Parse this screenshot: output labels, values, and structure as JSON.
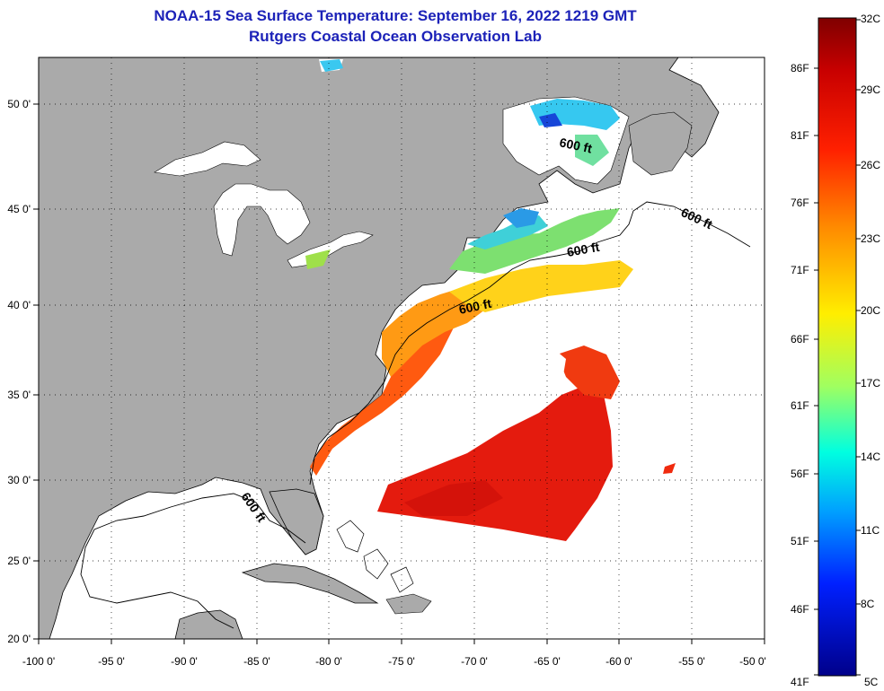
{
  "title": {
    "line1": "NOAA-15 Sea Surface Temperature:  September 16, 2022 1219 GMT",
    "line2": "Rutgers Coastal Ocean Observation Lab"
  },
  "map": {
    "lon_ticks": [
      "-100 0'",
      "-95 0'",
      "-90 0'",
      "-85 0'",
      "-80 0'",
      "-75 0'",
      "-70 0'",
      "-65 0'",
      "-60 0'",
      "-55 0'",
      "-50 0'"
    ],
    "lat_ticks": [
      "50 0'",
      "45 0'",
      "40 0'",
      "35 0'",
      "30 0'",
      "25 0'",
      "20 0'"
    ],
    "contour_labels": [
      "600 ft",
      "600 ft",
      "600 ft",
      "600 ft",
      "600 ft"
    ],
    "colors": {
      "land": "#aaaaaa",
      "no_data": "#ffffff",
      "frame": "#000000"
    }
  },
  "colorbar": {
    "celsius": [
      "32C",
      "29C",
      "26C",
      "23C",
      "20C",
      "17C",
      "14C",
      "11C",
      "8C",
      "5C"
    ],
    "fahrenheit": [
      "86F",
      "81F",
      "76F",
      "71F",
      "66F",
      "61F",
      "56F",
      "51F",
      "46F",
      "41F"
    ],
    "stops": [
      "#7f0000",
      "#ff0000",
      "#ff8000",
      "#ffff00",
      "#80ff80",
      "#00ffff",
      "#0080ff",
      "#0000ff",
      "#00008f"
    ]
  }
}
